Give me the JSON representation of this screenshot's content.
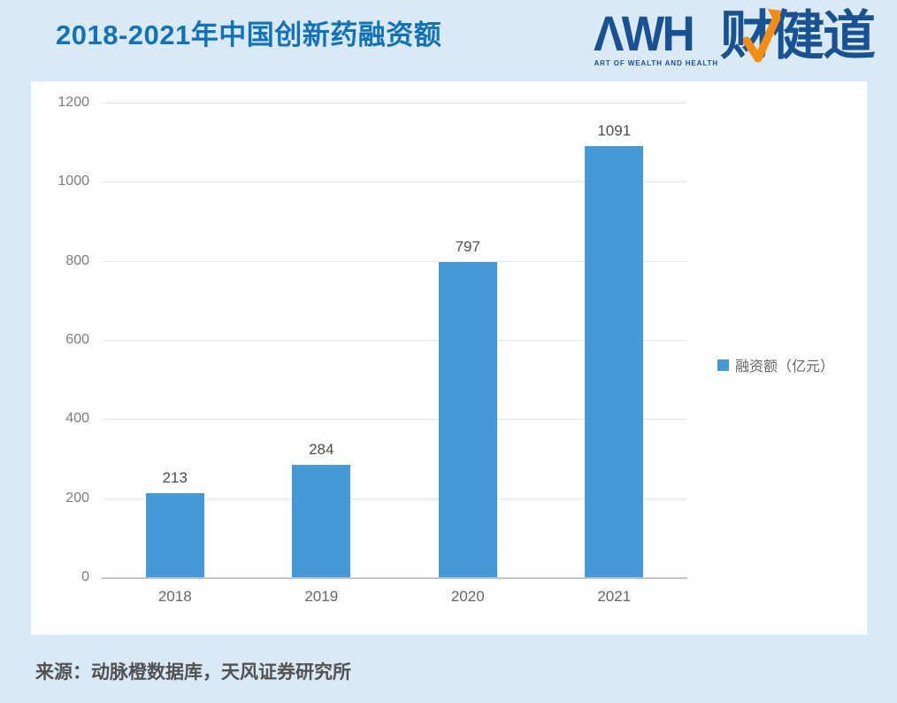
{
  "header": {
    "title": "2018-2021年中国创新药融资额",
    "logo": {
      "awh": "ΛWH",
      "tagline": "ART OF WEALTH AND HEALTH",
      "cn": "财健道"
    }
  },
  "chart_data": {
    "type": "bar",
    "title": "2018-2021年中国创新药融资额",
    "categories": [
      "2018",
      "2019",
      "2020",
      "2021"
    ],
    "values": [
      213,
      284,
      797,
      1091
    ],
    "series_name": "融资额（亿元）",
    "xlabel": "",
    "ylabel": "",
    "ylim": [
      0,
      1200
    ],
    "yticks": [
      0,
      200,
      400,
      600,
      800,
      1000,
      1200
    ],
    "grid": true,
    "legend_position": "right",
    "bar_color": "#4699d8"
  },
  "footer": {
    "source": "来源：动脉橙数据库，天风证券研究所"
  },
  "colors": {
    "title_blue": "#1272b8",
    "bar_blue": "#4699d8",
    "logo_blue": "#185293",
    "logo_orange": "#f28d11",
    "page_bg": "#d9e9f6",
    "panel_bg": "#ffffff"
  }
}
